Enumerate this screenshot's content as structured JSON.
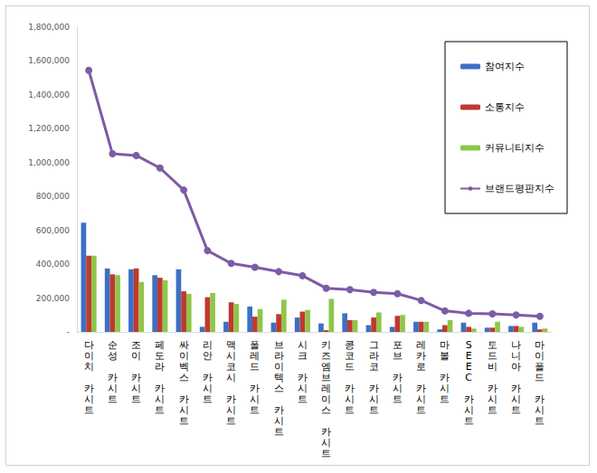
{
  "chart_data": {
    "type": "bar",
    "categories": [
      "다이치 카시트",
      "순성 카시트",
      "조이 카시트",
      "페도라 카시트",
      "싸이벡스 카시트",
      "리안 카시트",
      "맥시코시 카시트",
      "폴레드 카시트",
      "브라이텍스 카시트",
      "시크 카시트",
      "키즈엠브레이스 카시트",
      "콩코드 카시트",
      "그라코 카시트",
      "포브 카시트",
      "레카로 카시트",
      "마볼 카시트",
      "SEEC 카시트",
      "토드비 카시트",
      "나니아 카시트",
      "마이폴드 카시트"
    ],
    "series": [
      {
        "name": "참여지수",
        "type": "bar",
        "color": "#3d6fc4",
        "values": [
          645000,
          375000,
          370000,
          335000,
          370000,
          30000,
          60000,
          150000,
          55000,
          85000,
          50000,
          110000,
          40000,
          30000,
          60000,
          15000,
          55000,
          25000,
          35000,
          55000
        ]
      },
      {
        "name": "소통지수",
        "type": "bar",
        "color": "#c0392f",
        "values": [
          450000,
          340000,
          375000,
          320000,
          240000,
          205000,
          175000,
          90000,
          105000,
          120000,
          10000,
          70000,
          85000,
          95000,
          60000,
          40000,
          30000,
          25000,
          35000,
          15000
        ]
      },
      {
        "name": "커뮤니티지수",
        "type": "bar",
        "color": "#8fc54a",
        "values": [
          450000,
          335000,
          295000,
          305000,
          225000,
          230000,
          165000,
          135000,
          190000,
          130000,
          195000,
          70000,
          115000,
          100000,
          60000,
          70000,
          20000,
          60000,
          30000,
          20000
        ]
      },
      {
        "name": "브랜드평판지수",
        "type": "line",
        "color": "#7e5ba6",
        "marker": "circle",
        "values": [
          1545000,
          1052000,
          1042000,
          968000,
          838000,
          480000,
          405000,
          382000,
          356000,
          332000,
          258000,
          250000,
          234000,
          226000,
          186000,
          124000,
          110000,
          107000,
          100000,
          92000
        ]
      }
    ],
    "ylim": [
      0,
      1800000
    ],
    "yticks": [
      {
        "value": 0,
        "label": "-"
      },
      {
        "value": 200000,
        "label": "200,000"
      },
      {
        "value": 400000,
        "label": "400,000"
      },
      {
        "value": 600000,
        "label": "600,000"
      },
      {
        "value": 800000,
        "label": "800,000"
      },
      {
        "value": 1000000,
        "label": "1,000,000"
      },
      {
        "value": 1200000,
        "label": "1,200,000"
      },
      {
        "value": 1400000,
        "label": "1,400,000"
      },
      {
        "value": 1600000,
        "label": "1,600,000"
      },
      {
        "value": 1800000,
        "label": "1,800,000"
      }
    ],
    "grid": false,
    "legend": "right"
  }
}
